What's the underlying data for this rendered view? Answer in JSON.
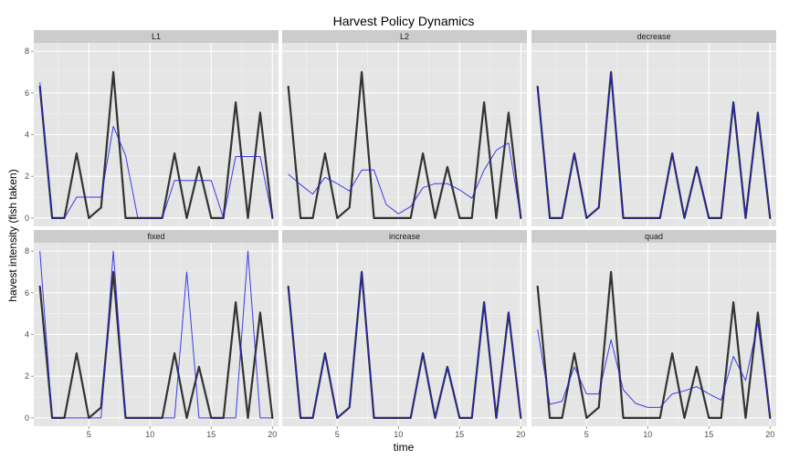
{
  "chart_data": {
    "type": "line",
    "title": "Harvest Policy Dynamics",
    "xlabel": "time",
    "ylabel": "havest intensity (fish taken)",
    "xlim": [
      0.5,
      20.5
    ],
    "ylim": [
      -0.4,
      8.4
    ],
    "x_ticks": [
      5,
      10,
      15,
      20
    ],
    "y_ticks": [
      0,
      2,
      4,
      6,
      8
    ],
    "grid": true,
    "colors": {
      "reference": "#333333",
      "policy": "#1f1fe6",
      "panel_bg": "#e5e5e5",
      "strip_bg": "#cccccc",
      "grid": "#ffffff"
    },
    "x": [
      1,
      2,
      3,
      4,
      5,
      6,
      7,
      8,
      9,
      10,
      11,
      12,
      13,
      14,
      15,
      16,
      17,
      18,
      19,
      20
    ],
    "reference_values": [
      6.3,
      0,
      0,
      3.1,
      0,
      0.5,
      7.0,
      0,
      0,
      0,
      0,
      3.1,
      0,
      2.45,
      0,
      0,
      5.55,
      0,
      5.05,
      0
    ],
    "panels": [
      {
        "label": "L1",
        "values": [
          6.5,
          0,
          0,
          1.0,
          1.0,
          1.0,
          4.4,
          3.0,
          0,
          0,
          0,
          1.8,
          1.8,
          1.8,
          1.8,
          0,
          2.95,
          2.95,
          2.95,
          0
        ]
      },
      {
        "label": "L2",
        "values": [
          2.1,
          1.6,
          1.15,
          1.95,
          1.65,
          1.3,
          2.3,
          2.3,
          0.65,
          0.2,
          0.55,
          1.45,
          1.65,
          1.65,
          1.35,
          0.95,
          2.3,
          3.25,
          3.6,
          0
        ]
      },
      {
        "label": "decrease",
        "values": [
          6.3,
          0,
          0,
          3.1,
          0,
          0.5,
          7.0,
          0,
          0,
          0,
          0,
          3.1,
          0,
          2.45,
          0,
          0,
          5.55,
          0,
          5.05,
          0
        ]
      },
      {
        "label": "fixed",
        "values": [
          8.0,
          0,
          0,
          0,
          0,
          0,
          8.0,
          0,
          0,
          0,
          0,
          0,
          7.0,
          0,
          0,
          0,
          0,
          8.0,
          0,
          0
        ]
      },
      {
        "label": "increase",
        "values": [
          6.3,
          0,
          0,
          3.1,
          0,
          0.5,
          7.0,
          0,
          0,
          0,
          0,
          3.1,
          0,
          2.45,
          0,
          0,
          5.55,
          0,
          5.05,
          0
        ]
      },
      {
        "label": "quad",
        "values": [
          4.25,
          0.65,
          0.8,
          2.45,
          1.15,
          1.15,
          3.75,
          1.35,
          0.7,
          0.5,
          0.5,
          1.15,
          1.3,
          1.5,
          1.15,
          0.85,
          2.95,
          1.8,
          4.55,
          0
        ]
      }
    ]
  }
}
